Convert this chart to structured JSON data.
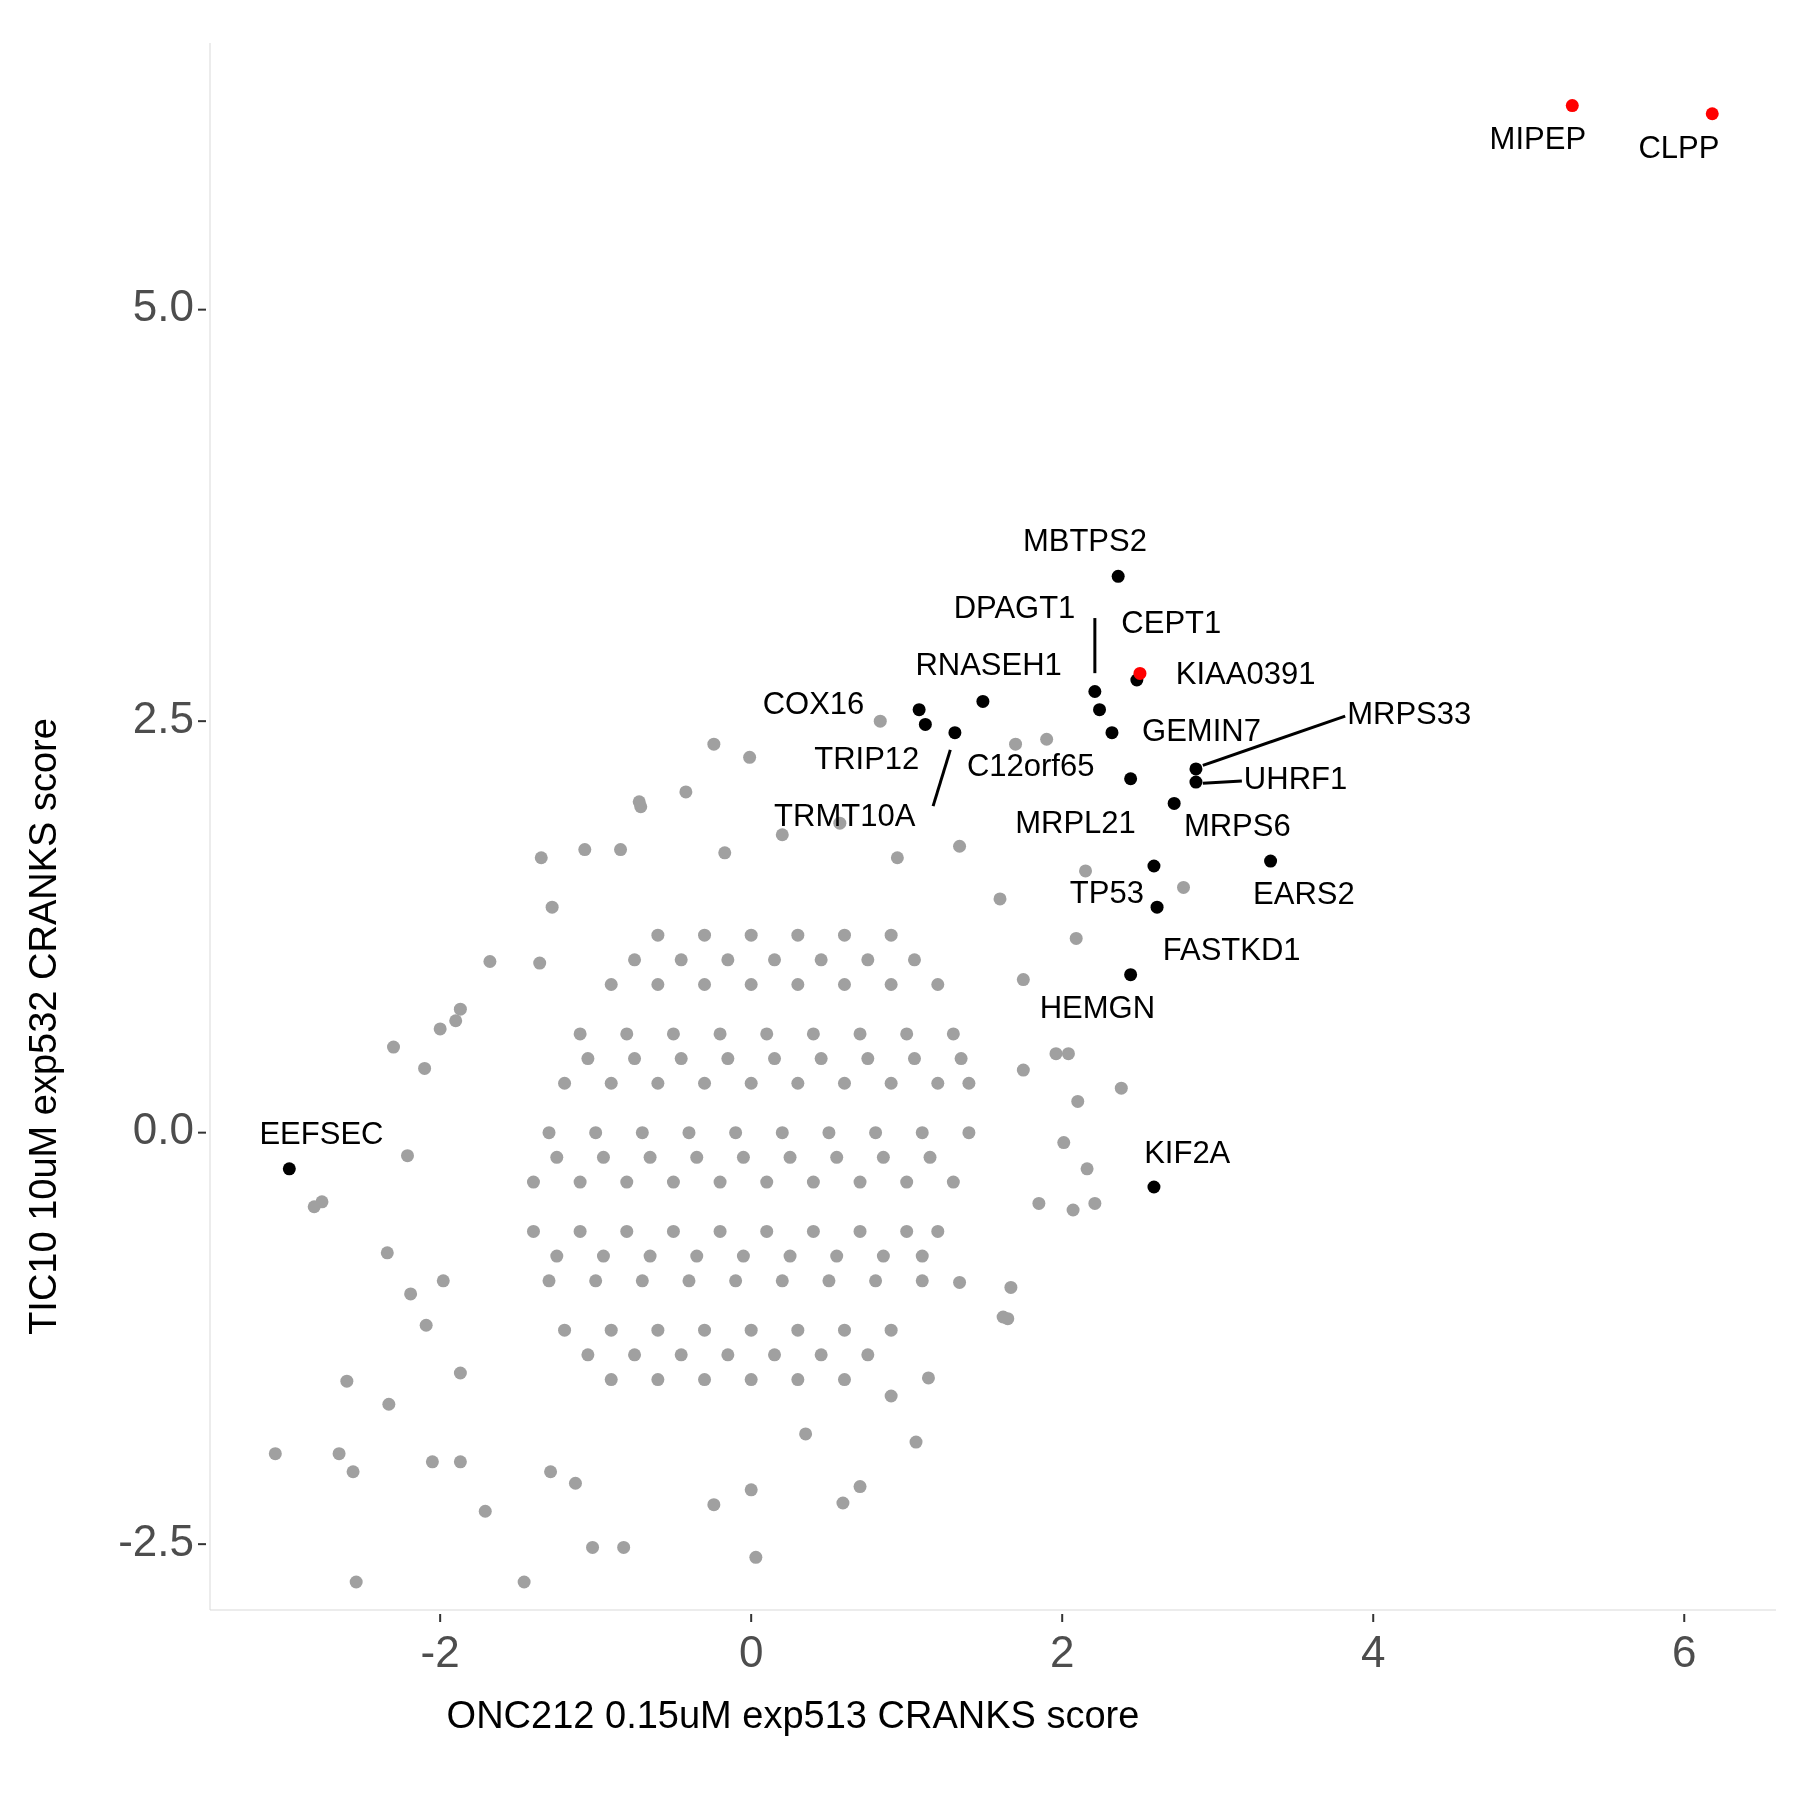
{
  "chart_data": {
    "type": "scatter",
    "xlabel": "ONC212 0.15uM exp513 CRANKS score",
    "ylabel": "TIC10 10uM exp532 CRANKS score",
    "xlim": [
      -3.48,
      6.59
    ],
    "ylim": [
      -2.9,
      6.62
    ],
    "xticks": [
      -2,
      0,
      2,
      4,
      6
    ],
    "yticks": [
      -2.5,
      {
        "value": 0,
        "label": "0.0"
      },
      2.5,
      {
        "value": 5,
        "label": "5.0"
      }
    ],
    "grid": false,
    "legend": false,
    "marker": "circle",
    "series": [
      {
        "color": "#a0a0a0",
        "x": [
          -3.06,
          -2.81,
          -2.76,
          -2.54,
          -2.6,
          -2.65,
          -2.56,
          -2.33,
          -2.34,
          -2.3,
          -2.21,
          -2.19,
          -2.1,
          -2.0,
          -1.71,
          -1.46,
          -1.35,
          -1.07,
          -0.84,
          -0.71,
          -0.42,
          -0.24,
          -0.01,
          0.03,
          0.59,
          0.7,
          1.06,
          0.9,
          1.14,
          1.62,
          1.85,
          2.07,
          2.16,
          2.1,
          2.01,
          2.09,
          -1.02,
          -0.82,
          -1.29,
          -1.87,
          -2.05,
          -1.98,
          -2.09,
          -1.87,
          -1.9,
          -1.87,
          -1.68,
          -1.36,
          -1.28,
          -1.13,
          -0.24,
          0.0,
          0.35,
          1.34,
          1.67,
          1.65,
          1.75,
          2.04,
          1.75,
          1.6,
          1.34,
          0.94,
          0.57,
          0.2,
          -0.17,
          2.38,
          2.21,
          2.78,
          2.15,
          1.96,
          1.9,
          1.7,
          0.83,
          -0.72,
          -0.6,
          -0.3,
          0,
          0.3,
          0.6,
          0.9,
          -0.9,
          -0.6,
          -0.3,
          0,
          0.3,
          0.6,
          0.9,
          1.2,
          -1.1,
          -0.8,
          -0.5,
          -0.2,
          0.1,
          0.4,
          0.7,
          1.0,
          1.3,
          -1.2,
          -0.9,
          -0.6,
          -0.3,
          0,
          0.3,
          0.6,
          0.9,
          1.2,
          1.4,
          -1.3,
          -1.0,
          -0.7,
          -0.4,
          -0.1,
          0.2,
          0.5,
          0.8,
          1.1,
          1.4,
          -1.4,
          -1.1,
          -0.8,
          -0.5,
          -0.2,
          0.1,
          0.4,
          0.7,
          1.0,
          1.3,
          -1.4,
          -1.1,
          -0.8,
          -0.5,
          -0.2,
          0.1,
          0.4,
          0.7,
          1.0,
          1.2,
          -1.3,
          -1.0,
          -0.7,
          -0.4,
          -0.1,
          0.2,
          0.5,
          0.8,
          1.1,
          -1.2,
          -0.9,
          -0.6,
          -0.3,
          0,
          0.3,
          0.6,
          0.9,
          -0.9,
          -0.6,
          -0.3,
          0,
          0.3,
          0.6,
          -0.75,
          -0.45,
          -0.15,
          0.15,
          0.45,
          0.75,
          1.05,
          -1.05,
          -0.75,
          -0.45,
          -0.15,
          0.15,
          0.45,
          0.75,
          1.05,
          1.35,
          -1.25,
          -0.95,
          -0.65,
          -0.35,
          -0.05,
          0.25,
          0.55,
          0.85,
          1.15,
          -1.25,
          -0.95,
          -0.65,
          -0.35,
          -0.05,
          0.25,
          0.55,
          0.85,
          1.1,
          -1.05,
          -0.75,
          -0.45,
          -0.15,
          0.15,
          0.45,
          0.75
        ],
        "values": [
          -1.95,
          -0.45,
          -0.42,
          -2.73,
          -1.51,
          -1.95,
          -2.06,
          -1.65,
          -0.73,
          0.52,
          -0.14,
          -0.98,
          0.39,
          0.63,
          -2.3,
          -2.73,
          1.67,
          1.72,
          1.72,
          1.98,
          2.07,
          2.36,
          2.28,
          -2.58,
          -2.25,
          -2.15,
          -1.88,
          -1.6,
          -1.49,
          -1.12,
          -0.43,
          -0.47,
          -0.22,
          0.19,
          -0.06,
          1.18,
          -2.52,
          -2.52,
          -2.06,
          -2.0,
          -2.0,
          -0.9,
          -1.17,
          -1.46,
          0.68,
          0.75,
          1.04,
          1.03,
          1.37,
          -2.13,
          -2.26,
          -2.17,
          -1.83,
          -0.91,
          -0.94,
          -1.13,
          0.38,
          0.48,
          0.93,
          1.42,
          1.74,
          1.67,
          1.88,
          1.81,
          1.7,
          0.27,
          -0.43,
          1.49,
          1.59,
          0.48,
          2.39,
          2.36,
          2.5,
          2.01,
          1.2,
          1.2,
          1.2,
          1.2,
          1.2,
          1.2,
          0.9,
          0.9,
          0.9,
          0.9,
          0.9,
          0.9,
          0.9,
          0.9,
          0.6,
          0.6,
          0.6,
          0.6,
          0.6,
          0.6,
          0.6,
          0.6,
          0.6,
          0.3,
          0.3,
          0.3,
          0.3,
          0.3,
          0.3,
          0.3,
          0.3,
          0.3,
          0.3,
          0,
          0,
          0,
          0,
          0,
          0,
          0,
          0,
          0,
          0,
          -0.3,
          -0.3,
          -0.3,
          -0.3,
          -0.3,
          -0.3,
          -0.3,
          -0.3,
          -0.3,
          -0.3,
          -0.6,
          -0.6,
          -0.6,
          -0.6,
          -0.6,
          -0.6,
          -0.6,
          -0.6,
          -0.6,
          -0.6,
          -0.9,
          -0.9,
          -0.9,
          -0.9,
          -0.9,
          -0.9,
          -0.9,
          -0.9,
          -0.9,
          -1.2,
          -1.2,
          -1.2,
          -1.2,
          -1.2,
          -1.2,
          -1.2,
          -1.2,
          -1.5,
          -1.5,
          -1.5,
          -1.5,
          -1.5,
          -1.5,
          1.05,
          1.05,
          1.05,
          1.05,
          1.05,
          1.05,
          1.05,
          0.45,
          0.45,
          0.45,
          0.45,
          0.45,
          0.45,
          0.45,
          0.45,
          0.45,
          -0.15,
          -0.15,
          -0.15,
          -0.15,
          -0.15,
          -0.15,
          -0.15,
          -0.15,
          -0.15,
          -0.75,
          -0.75,
          -0.75,
          -0.75,
          -0.75,
          -0.75,
          -0.75,
          -0.75,
          -0.75,
          -1.35,
          -1.35,
          -1.35,
          -1.35,
          -1.35,
          -1.35,
          -1.35
        ]
      },
      {
        "color": "#000000",
        "x": [
          2.36,
          2.48,
          2.21,
          2.24,
          2.32,
          1.49,
          1.08,
          1.12,
          1.31,
          2.86,
          2.86,
          2.44,
          2.72,
          2.59,
          3.34,
          2.61,
          2.44,
          2.59,
          -2.97
        ],
        "values": [
          3.38,
          2.75,
          2.68,
          2.57,
          2.43,
          2.62,
          2.57,
          2.48,
          2.43,
          2.21,
          2.13,
          2.15,
          2.0,
          1.62,
          1.65,
          1.37,
          0.96,
          -0.33,
          -0.22
        ]
      },
      {
        "color": "#ff0000",
        "x": [
          5.28,
          6.18,
          2.5
        ],
        "values": [
          6.24,
          6.19,
          2.79
        ]
      }
    ],
    "annotations": [
      {
        "text": "MIPEP",
        "x": 5.28,
        "y": 6.24
      },
      {
        "text": "CLPP",
        "x": 6.18,
        "y": 6.19
      },
      {
        "text": "KIAA0391",
        "x": 2.5,
        "y": 2.79
      },
      {
        "text": "MBTPS2",
        "x": 2.36,
        "y": 3.38
      },
      {
        "text": "CEPT1",
        "x": 2.48,
        "y": 2.75
      },
      {
        "text": "DPAGT1",
        "x": 2.21,
        "y": 2.68
      },
      {
        "text": "C12orf65",
        "x": 2.24,
        "y": 2.57
      },
      {
        "text": "GEMIN7",
        "x": 2.32,
        "y": 2.43
      },
      {
        "text": "RNASEH1",
        "x": 1.49,
        "y": 2.62
      },
      {
        "text": "COX16",
        "x": 1.08,
        "y": 2.57
      },
      {
        "text": "TRIP12",
        "x": 1.12,
        "y": 2.48
      },
      {
        "text": "TRMT10A",
        "x": 1.31,
        "y": 2.43
      },
      {
        "text": "MRPS33",
        "x": 2.86,
        "y": 2.21
      },
      {
        "text": "UHRF1",
        "x": 2.86,
        "y": 2.13
      },
      {
        "text": "MRPL21",
        "x": 2.44,
        "y": 2.15
      },
      {
        "text": "MRPS6",
        "x": 2.72,
        "y": 2.0
      },
      {
        "text": "TP53",
        "x": 2.59,
        "y": 1.62
      },
      {
        "text": "EARS2",
        "x": 3.34,
        "y": 1.65
      },
      {
        "text": "FASTKD1",
        "x": 2.61,
        "y": 1.37
      },
      {
        "text": "HEMGN",
        "x": 2.44,
        "y": 0.96
      },
      {
        "text": "KIF2A",
        "x": 2.59,
        "y": -0.33
      },
      {
        "text": "EEFSEC",
        "x": -2.97,
        "y": -0.22
      }
    ]
  }
}
